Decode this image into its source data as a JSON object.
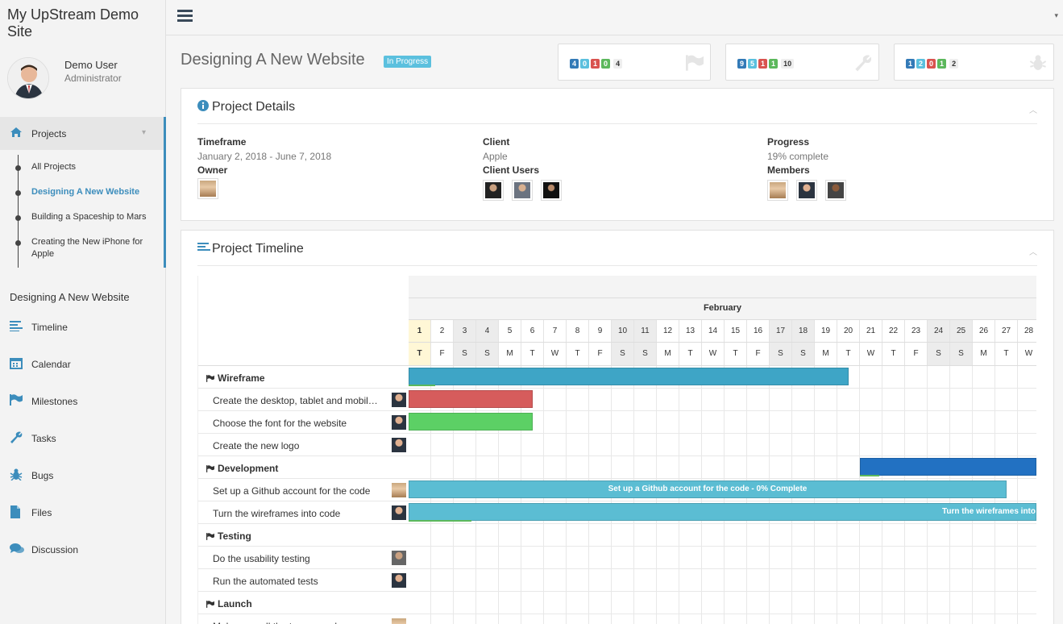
{
  "site": {
    "title": "My UpStream Demo Site"
  },
  "user": {
    "name": "Demo User",
    "role": "Administrator"
  },
  "sidebar": {
    "projects_label": "Projects",
    "project_links": [
      "All Projects",
      "Designing A New Website",
      "Building a Spaceship to Mars",
      "Creating the New iPhone for Apple"
    ],
    "current_project": "Designing A New Website",
    "sections": [
      {
        "label": "Timeline",
        "icon": "timeline-icon"
      },
      {
        "label": "Calendar",
        "icon": "calendar-icon"
      },
      {
        "label": "Milestones",
        "icon": "flag-icon"
      },
      {
        "label": "Tasks",
        "icon": "wrench-icon"
      },
      {
        "label": "Bugs",
        "icon": "bug-icon"
      },
      {
        "label": "Files",
        "icon": "file-icon"
      },
      {
        "label": "Discussion",
        "icon": "comments-icon"
      }
    ]
  },
  "header": {
    "title": "Designing A New Website",
    "status": "In Progress"
  },
  "stats": [
    {
      "icon": "flag-icon",
      "values": [
        "4",
        "0",
        "1",
        "0"
      ],
      "total": "4"
    },
    {
      "icon": "wrench-icon",
      "values": [
        "9",
        "5",
        "1",
        "1"
      ],
      "total": "10"
    },
    {
      "icon": "bug-icon",
      "values": [
        "1",
        "2",
        "0",
        "1"
      ],
      "total": "2"
    }
  ],
  "details": {
    "title": "Project Details",
    "timeframe_label": "Timeframe",
    "timeframe": "January 2, 2018 - June 7, 2018",
    "owner_label": "Owner",
    "client_label": "Client",
    "client": "Apple",
    "client_users_label": "Client Users",
    "progress_label": "Progress",
    "progress": "19% complete",
    "members_label": "Members"
  },
  "timeline": {
    "title": "Project Timeline",
    "month": "February",
    "days": [
      "1",
      "2",
      "3",
      "4",
      "5",
      "6",
      "7",
      "8",
      "9",
      "10",
      "11",
      "12",
      "13",
      "14",
      "15",
      "16",
      "17",
      "18",
      "19",
      "20",
      "21",
      "22",
      "23",
      "24",
      "25",
      "26",
      "27",
      "28"
    ],
    "dows": [
      "T",
      "F",
      "S",
      "S",
      "M",
      "T",
      "W",
      "T",
      "F",
      "S",
      "S",
      "M",
      "T",
      "W",
      "T",
      "F",
      "S",
      "S",
      "M",
      "T",
      "W",
      "T",
      "F",
      "S",
      "S",
      "M",
      "T",
      "W"
    ],
    "rows": [
      {
        "label": "Wireframe",
        "group": true
      },
      {
        "label": "Create the desktop, tablet and mobile mockups",
        "group": false,
        "av": "m"
      },
      {
        "label": "Choose the font for the website",
        "group": false,
        "av": "m"
      },
      {
        "label": "Create the new logo",
        "group": false,
        "av": "m"
      },
      {
        "label": "Development",
        "group": true
      },
      {
        "label": "Set up a Github account for the code",
        "group": false,
        "av": "f"
      },
      {
        "label": "Turn the wireframes into code",
        "group": false,
        "av": "m"
      },
      {
        "label": "Testing",
        "group": true
      },
      {
        "label": "Do the usability testing",
        "group": false,
        "av": "g"
      },
      {
        "label": "Run the automated tests",
        "group": false,
        "av": "m"
      },
      {
        "label": "Launch",
        "group": true
      },
      {
        "label": "Make sure all the team members are ready",
        "group": false,
        "av": "f"
      }
    ],
    "bars": [
      {
        "row": 0,
        "start": 1,
        "end": 20.5,
        "color": "#3ea5c6",
        "progress": 0.06,
        "text": ""
      },
      {
        "row": 1,
        "start": 1,
        "end": 6.5,
        "color": "#d65c5c",
        "progress": 0,
        "text": ""
      },
      {
        "row": 2,
        "start": 1,
        "end": 6.5,
        "color": "#5cd065",
        "progress": 0,
        "text": ""
      },
      {
        "row": 4,
        "start": 21,
        "end": 29,
        "color": "#2271c2",
        "progress": 0.11,
        "text": ""
      },
      {
        "row": 5,
        "start": 1,
        "end": 27.5,
        "color": "#5bbdd3",
        "progress": 0,
        "text": "Set up a Github account for the code - 0% Complete"
      },
      {
        "row": 6,
        "start": 1,
        "end": 29,
        "color": "#5bbdd3",
        "progress": 0.1,
        "text": "Turn the wireframes into"
      }
    ]
  }
}
